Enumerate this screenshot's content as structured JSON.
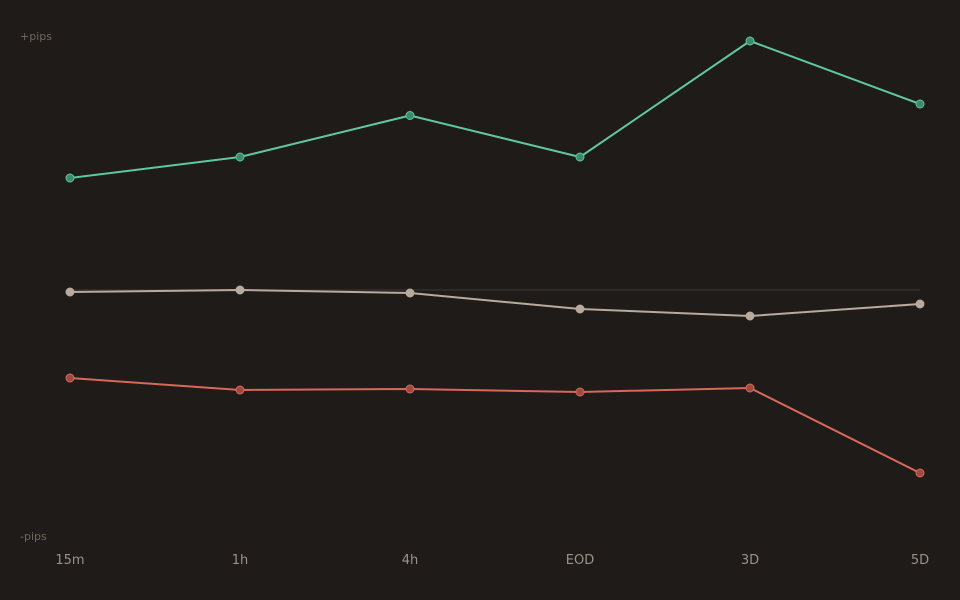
{
  "chart_data": {
    "type": "line",
    "title": "",
    "xlabel": "",
    "ylabel": "",
    "y_top_label": "+pips",
    "y_bottom_label": "-pips",
    "categories": [
      "15m",
      "1h",
      "4h",
      "EOD",
      "3D",
      "5D"
    ],
    "ylim": [
      -100,
      100
    ],
    "zero_line": true,
    "grid": false,
    "legend": "none",
    "series": [
      {
        "values": [
          44.8,
          53.2,
          69.8,
          53.2,
          99.6,
          74.4
        ],
        "color": "#5fc7a2",
        "marker_color": "#3d8a6a"
      },
      {
        "values": [
          -0.8,
          0,
          -1.2,
          -7.6,
          -10.4,
          -5.6
        ],
        "color": "#b8aa9c",
        "marker_color": "#b8aa9c"
      },
      {
        "values": [
          -35.2,
          -40.0,
          -39.6,
          -40.8,
          -39.2,
          -73.2
        ],
        "color": "#d9675a",
        "marker_color": "#9e4a42"
      }
    ],
    "colors": {
      "background": "#1e1b18",
      "zero_line": "#34302c",
      "axis_text": "#6f6860",
      "tick_text": "#9a9189"
    }
  }
}
